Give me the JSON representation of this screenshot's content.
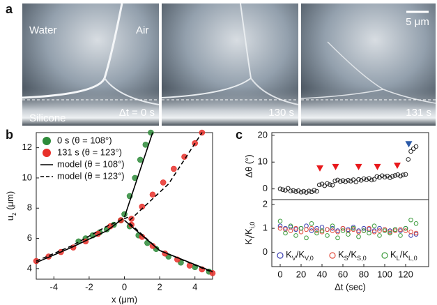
{
  "panel_labels": [
    "a",
    "b",
    "c"
  ],
  "panel_a": {
    "labels": {
      "water": "Water",
      "air": "Air",
      "scale": "5 μm",
      "silicone": "Silicone",
      "t0": "Δt = 0 s",
      "t1": "130 s",
      "t2": "131 s"
    }
  },
  "chart_data": [
    {
      "type": "scatter",
      "xlabel": "x (μm)",
      "ylabel": [
        "u",
        "z",
        " (μm)"
      ],
      "xlim": [
        -5,
        5
      ],
      "ylim": [
        3.3,
        13
      ],
      "xticks": [
        -4,
        -2,
        0,
        2,
        4
      ],
      "yticks": [
        4,
        6,
        8,
        10,
        12
      ],
      "legend": "upper left",
      "marker_fill": "solid",
      "series": [
        {
          "name": "0 s (θ = 108°)",
          "color": "#2e8b3a",
          "x": [
            -2.6,
            -2.2,
            -1.8,
            -1.4,
            -1,
            -0.6,
            -0.2,
            0.3,
            0.8,
            1.3,
            1.8,
            2.5,
            3.2,
            4,
            4.8,
            0,
            0.3,
            0.6,
            0.9,
            1.2,
            1.5
          ],
          "values": [
            5.8,
            6,
            6.2,
            6.4,
            6.6,
            6.9,
            7.2,
            6.8,
            6.2,
            5.7,
            5.3,
            4.8,
            4.4,
            4.1,
            3.8,
            7.6,
            8.8,
            10,
            11.2,
            12.2,
            13
          ]
        },
        {
          "name": "131 s (θ = 123°)",
          "color": "#e8302a",
          "x": [
            -5,
            -4.3,
            -3.6,
            -2.9,
            -2.2,
            -1.5,
            -0.8,
            -0.2,
            0.4,
            1,
            1.6,
            2.3,
            3,
            3.7,
            4.4,
            5,
            0.4,
            1,
            1.6,
            2.2,
            2.8,
            3.4,
            4,
            4.4
          ],
          "values": [
            4.5,
            4.8,
            5.1,
            5.4,
            5.8,
            6.3,
            6.8,
            7.2,
            6.9,
            6.1,
            5.5,
            5,
            4.6,
            4.2,
            3.95,
            3.7,
            7.3,
            8.1,
            8.9,
            9.7,
            10.6,
            11.4,
            12.3,
            13
          ]
        },
        {
          "name": "model (θ = 108°)",
          "color": "#000000",
          "line": "solid",
          "x": [
            -5,
            -3,
            -1,
            -0.1,
            0,
            0,
            2,
            5,
            0,
            0,
            0.8,
            1.6
          ],
          "values": [
            4.4,
            5.4,
            6.5,
            7.3,
            null,
            7.2,
            5.2,
            3.8,
            null,
            7.4,
            10.2,
            13
          ]
        },
        {
          "name": "model (θ = 123°)",
          "color": "#000000",
          "line": "dashed",
          "x": [
            -5,
            -3,
            -1,
            0.2,
            0,
            0.3,
            2,
            5,
            0,
            0.3,
            2.5,
            4.4
          ],
          "values": [
            4.5,
            5.5,
            6.8,
            7.4,
            null,
            7,
            5.2,
            3.75,
            null,
            7.2,
            9.6,
            13
          ]
        }
      ]
    },
    {
      "type": "scatter",
      "ylabel": "Δθ (°)",
      "xlim": [
        -8,
        142
      ],
      "ylim": [
        -4,
        21
      ],
      "yticks": [
        0,
        10,
        20
      ],
      "marker_fill": "hollow",
      "series": [
        {
          "color": "#222222",
          "x": [
            0,
            2.5,
            5,
            7.5,
            10,
            12.5,
            15,
            17.5,
            20,
            22.5,
            25,
            27.5,
            30,
            32.5,
            35,
            37.5,
            40,
            42.5,
            45,
            47.5,
            50,
            52.5,
            55,
            57.5,
            60,
            62.5,
            65,
            67.5,
            70,
            72.5,
            75,
            77.5,
            80,
            82.5,
            85,
            87.5,
            90,
            92.5,
            95,
            97.5,
            100,
            102.5,
            105,
            107.5,
            110,
            112.5,
            115,
            117.5,
            120,
            122.5,
            125,
            127.5,
            130
          ],
          "values": [
            0,
            -0.3,
            -0.5,
            0.2,
            -0.8,
            -0.6,
            -1,
            -0.7,
            -1.2,
            -0.9,
            -1.3,
            -0.8,
            -1.1,
            -0.5,
            -0.9,
            1.5,
            1.8,
            1.2,
            2,
            1.6,
            1.4,
            3,
            3.3,
            2.8,
            3.1,
            2.7,
            3.2,
            2.9,
            3.4,
            2.6,
            3.5,
            3.2,
            3.8,
            3.4,
            3.9,
            3.3,
            3.6,
            4.6,
            4.3,
            4.9,
            4.4,
            4.8,
            4.2,
            4.7,
            5,
            5.3,
            4.8,
            5.2,
            5.4,
            11,
            14,
            15,
            15.8
          ]
        }
      ],
      "events": [
        {
          "color": "#e8191c",
          "x": [
            38,
            53,
            75,
            93,
            112
          ],
          "y": [
            7.5,
            8,
            8,
            8,
            8.5
          ]
        },
        {
          "color": "#2b5aa8",
          "x": [
            123
          ],
          "y": [
            16.5
          ]
        }
      ]
    },
    {
      "type": "scatter",
      "xlabel": "Δt (sec)",
      "ylabel": [
        "K",
        "i",
        "/K",
        "i,0"
      ],
      "xlim": [
        -8,
        142
      ],
      "ylim": [
        -0.6,
        2.2
      ],
      "xticks": [
        0,
        20,
        40,
        60,
        80,
        100,
        120
      ],
      "yticks": [
        0,
        1,
        2
      ],
      "legend": "lower center",
      "marker_fill": "hollow",
      "series": [
        {
          "name": [
            "K",
            "V",
            "/K",
            "V,0"
          ],
          "color": "#3a3fb0",
          "x": [
            0,
            5,
            10,
            15,
            20,
            25,
            30,
            35,
            40,
            45,
            50,
            55,
            60,
            65,
            70,
            75,
            80,
            85,
            90,
            95,
            100,
            105,
            110,
            115,
            120,
            125,
            130
          ],
          "values": [
            1.1,
            1.0,
            1.05,
            0.95,
            1.0,
            1.1,
            0.9,
            1.0,
            1.05,
            0.95,
            1.0,
            0.9,
            1.0,
            0.95,
            1.05,
            0.9,
            1.0,
            0.95,
            0.9,
            1.0,
            0.95,
            0.9,
            0.95,
            0.9,
            1.0,
            0.7,
            0.75
          ]
        },
        {
          "name": [
            "K",
            "S",
            "/K",
            "S,0"
          ],
          "color": "#e24a3a",
          "x": [
            0,
            5,
            10,
            15,
            20,
            25,
            30,
            35,
            40,
            45,
            50,
            55,
            60,
            65,
            70,
            75,
            80,
            85,
            90,
            95,
            100,
            105,
            110,
            115,
            120,
            125,
            130
          ],
          "values": [
            1.0,
            0.95,
            0.9,
            1.0,
            0.85,
            0.95,
            1.0,
            0.9,
            0.85,
            0.95,
            0.9,
            0.85,
            1.0,
            0.9,
            0.95,
            0.85,
            0.9,
            1.0,
            0.85,
            0.9,
            0.95,
            0.85,
            0.9,
            0.95,
            0.9,
            0.85,
            0.8
          ]
        },
        {
          "name": [
            "K",
            "L",
            "/K",
            "L,0"
          ],
          "color": "#3a9a3a",
          "x": [
            0,
            5,
            10,
            15,
            20,
            25,
            30,
            35,
            40,
            45,
            50,
            55,
            60,
            65,
            70,
            75,
            80,
            85,
            90,
            95,
            100,
            105,
            110,
            115,
            120,
            125,
            130
          ],
          "values": [
            1.3,
            0.8,
            1.1,
            0.7,
            1.0,
            0.6,
            1.2,
            0.8,
            0.9,
            0.7,
            1.1,
            0.6,
            0.9,
            0.75,
            1.0,
            0.65,
            0.9,
            0.8,
            1.1,
            0.7,
            0.9,
            0.8,
            0.95,
            0.7,
            1.0,
            1.35,
            1.2
          ]
        }
      ]
    }
  ]
}
